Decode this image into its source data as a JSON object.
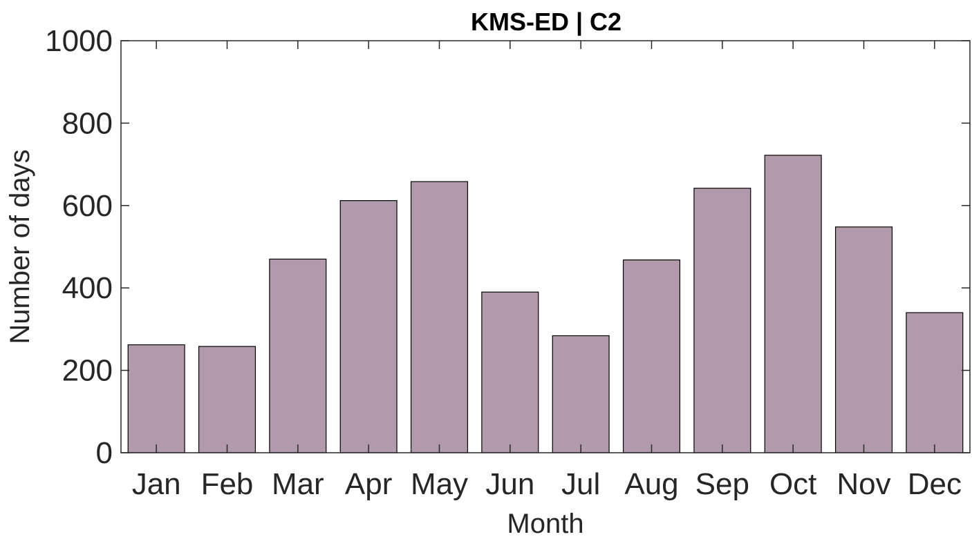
{
  "chart_data": {
    "type": "bar",
    "title": "KMS-ED | C2",
    "xlabel": "Month",
    "ylabel": "Number of days",
    "categories": [
      "Jan",
      "Feb",
      "Mar",
      "Apr",
      "May",
      "Jun",
      "Jul",
      "Aug",
      "Sep",
      "Oct",
      "Nov",
      "Dec"
    ],
    "values": [
      262,
      258,
      470,
      612,
      658,
      390,
      284,
      468,
      642,
      722,
      548,
      340
    ],
    "ylim": [
      0,
      1000
    ],
    "yticks": [
      0,
      200,
      400,
      600,
      800,
      1000
    ],
    "grid": false,
    "legend": false,
    "bar_color": "#b09aab",
    "edge_color": "#000000"
  }
}
